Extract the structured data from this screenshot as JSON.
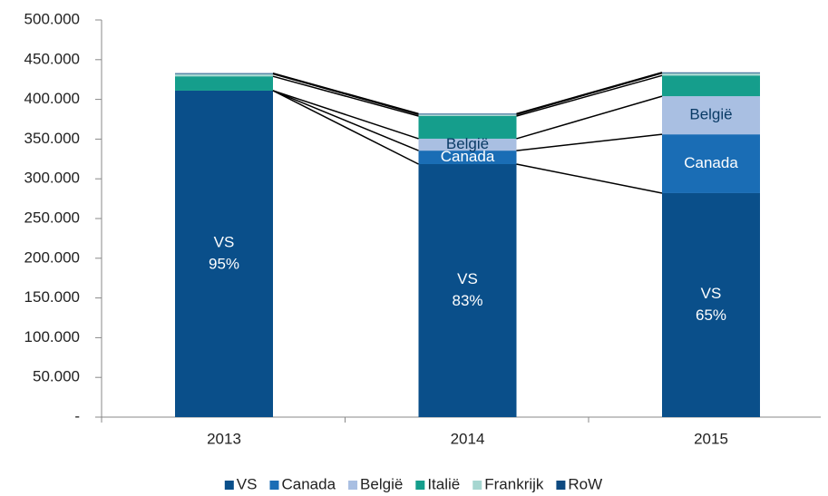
{
  "chart_data": {
    "type": "stacked_bar",
    "categories": [
      "2013",
      "2014",
      "2015"
    ],
    "series": [
      {
        "name": "VS",
        "color": "#0a4f8a",
        "values": [
          411000,
          318500,
          282000
        ]
      },
      {
        "name": "Canada",
        "color": "#1a6db5",
        "values": [
          0,
          17000,
          74000
        ]
      },
      {
        "name": "België",
        "color": "#a9bfe2",
        "values": [
          0,
          15000,
          48000
        ]
      },
      {
        "name": "Italië",
        "color": "#159e8c",
        "values": [
          18000,
          28500,
          26000
        ]
      },
      {
        "name": "Frankrijk",
        "color": "#a6d6d0",
        "values": [
          3000,
          2000,
          3000
        ]
      },
      {
        "name": "RoW",
        "color": "#0e4a80",
        "values": [
          1000,
          1000,
          1000
        ]
      }
    ],
    "segment_labels": [
      {
        "series": 0,
        "category": 0,
        "share": "95%"
      },
      {
        "series": 0,
        "category": 1,
        "share": "83%"
      },
      {
        "series": 0,
        "category": 2,
        "share": "65%"
      },
      {
        "series": 1,
        "category": 1
      },
      {
        "series": 1,
        "category": 2
      },
      {
        "series": 2,
        "category": 1
      },
      {
        "series": 2,
        "category": 2
      }
    ],
    "ylim": [
      0,
      500000
    ],
    "yticks": [
      {
        "value": 0,
        "label": "-"
      },
      {
        "value": 50000,
        "label": "50.000"
      },
      {
        "value": 100000,
        "label": "100.000"
      },
      {
        "value": 150000,
        "label": "150.000"
      },
      {
        "value": 200000,
        "label": "200.000"
      },
      {
        "value": 250000,
        "label": "250.000"
      },
      {
        "value": 300000,
        "label": "300.000"
      },
      {
        "value": 350000,
        "label": "350.000"
      },
      {
        "value": 400000,
        "label": "400.000"
      },
      {
        "value": 450000,
        "label": "450.000"
      },
      {
        "value": 500000,
        "label": "500.000"
      }
    ],
    "legend": "bottom"
  }
}
